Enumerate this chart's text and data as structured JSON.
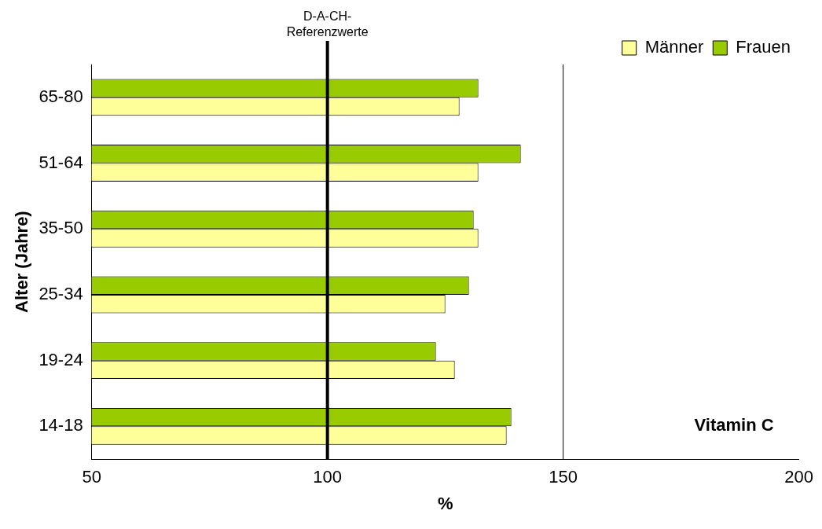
{
  "chart_data": {
    "type": "bar",
    "orientation": "horizontal",
    "xlabel": "%",
    "ylabel": "Alter (Jahre)",
    "categories": [
      "65-80",
      "51-64",
      "35-50",
      "25-34",
      "19-24",
      "14-18"
    ],
    "series": [
      {
        "name": "Frauen",
        "color": "#99cc00",
        "values": [
          132,
          141,
          131,
          130,
          123,
          139
        ]
      },
      {
        "name": "Männer",
        "color": "#ffff99",
        "values": [
          128,
          132,
          132,
          125,
          127,
          138
        ]
      }
    ],
    "xlim": [
      50,
      200
    ],
    "xticks": [
      50,
      100,
      150,
      200
    ],
    "legend": "top right",
    "ref_lines": [
      {
        "axis": "x",
        "value": 100,
        "label": "D-A-CH-\nReferenzwerte",
        "color": "#000000"
      },
      {
        "axis": "x",
        "value": 150,
        "color": "#000000"
      }
    ],
    "annotations": [
      "Vitamin C"
    ]
  }
}
